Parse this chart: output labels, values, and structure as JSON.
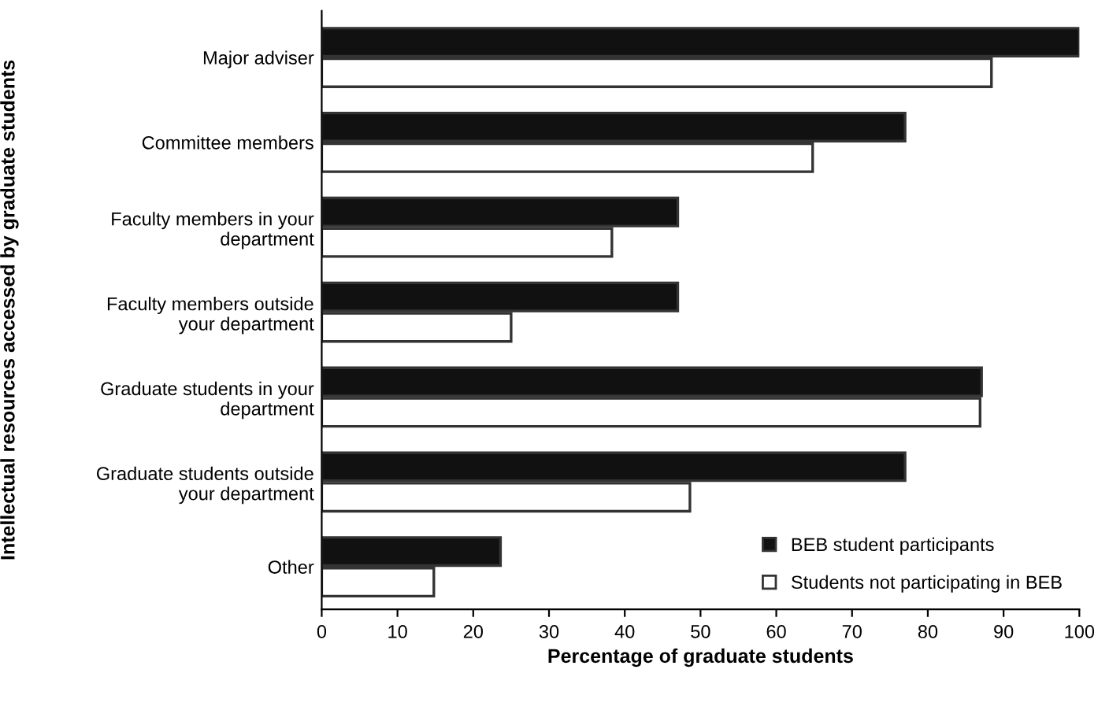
{
  "chart_data": {
    "type": "bar",
    "orientation": "horizontal",
    "xlabel": "Percentage of graduate students",
    "ylabel": "Intellectual resources accessed by graduate students",
    "categories": [
      "Major adviser",
      "Committee members",
      "Faculty members in your\ndepartment",
      "Faculty members outside\nyour department",
      "Graduate students in your\ndepartment",
      "Graduate students outside\nyour department",
      "Other"
    ],
    "series": [
      {
        "name": "BEB student participants",
        "color": "#111111",
        "values": [
          100,
          77,
          47,
          47,
          87.1,
          77,
          23.6
        ]
      },
      {
        "name": "Students not participating in BEB",
        "color": "#ffffff",
        "values": [
          88.4,
          64.8,
          38.3,
          25,
          86.9,
          48.6,
          14.8
        ]
      }
    ],
    "xlim": [
      0,
      100
    ],
    "xticks": [
      0,
      10,
      20,
      30,
      40,
      50,
      60,
      70,
      80,
      90,
      100
    ],
    "grid": false,
    "legend": "bottom right"
  }
}
